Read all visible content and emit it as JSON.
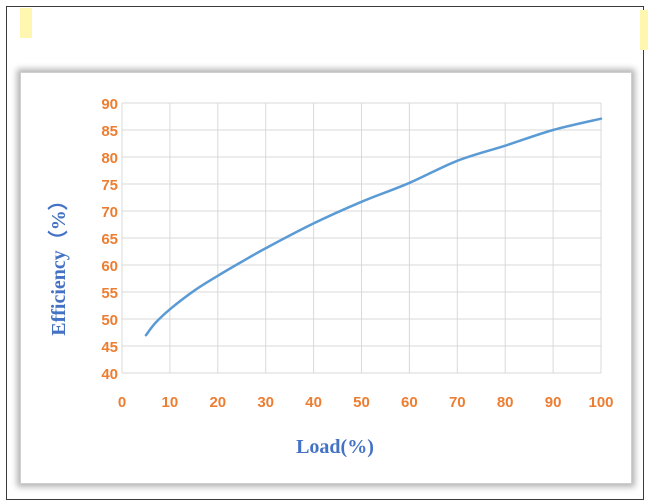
{
  "chart_data": {
    "type": "line",
    "xlabel": "Load(%)",
    "ylabel": "Efficiency（%）",
    "xlim": [
      0,
      100
    ],
    "ylim": [
      40,
      90
    ],
    "x_ticks": [
      "0",
      "10",
      "20",
      "30",
      "40",
      "50",
      "60",
      "70",
      "80",
      "90",
      "100"
    ],
    "y_ticks": [
      "40",
      "45",
      "50",
      "55",
      "60",
      "65",
      "70",
      "75",
      "80",
      "85",
      "90"
    ],
    "grid": true,
    "series": [
      {
        "x": [
          5,
          7,
          10,
          15,
          20,
          25,
          30,
          40,
          50,
          60,
          70,
          80,
          90,
          100
        ],
        "y": [
          47,
          49.3,
          51.8,
          55.2,
          58,
          60.6,
          63.1,
          67.7,
          71.7,
          75.2,
          79.3,
          82.1,
          85,
          87.1
        ]
      }
    ],
    "colors": {
      "line": "#5b9bd5",
      "tick_labels": "#ed7d31",
      "axis_titles": "#4472c4",
      "grid": "#d9d9d9"
    }
  }
}
